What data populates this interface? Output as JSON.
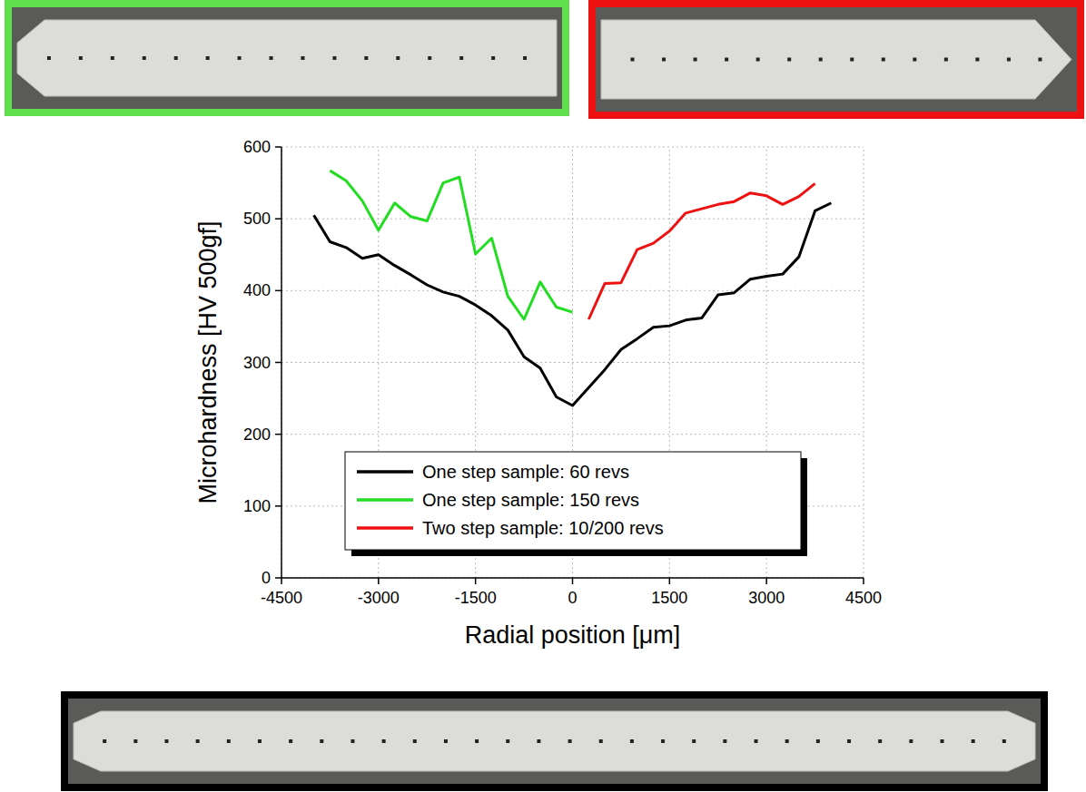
{
  "chart_data": {
    "type": "line",
    "x_label": "Radial position [μm]",
    "y_label": "Microhardness [HV 500gf]",
    "xlim": [
      -4500,
      4500
    ],
    "xticks": [
      -4500,
      -3000,
      -1500,
      0,
      1500,
      3000,
      4500
    ],
    "ylim": [
      0,
      600
    ],
    "yticks": [
      0,
      100,
      200,
      300,
      400,
      500,
      600
    ],
    "grid": true,
    "legend": "bottom",
    "series": [
      {
        "name": "One step sample: 60 revs",
        "color": "#000000",
        "x": [
          -4000,
          -3750,
          -3500,
          -3250,
          -3000,
          -2750,
          -2500,
          -2250,
          -2000,
          -1750,
          -1500,
          -1250,
          -1000,
          -750,
          -500,
          -250,
          0,
          250,
          500,
          750,
          1000,
          1250,
          1500,
          1750,
          2000,
          2250,
          2500,
          2750,
          3000,
          3250,
          3500,
          3750,
          4000
        ],
        "values": [
          505,
          468,
          460,
          445,
          450,
          435,
          422,
          408,
          398,
          392,
          380,
          365,
          345,
          308,
          292,
          252,
          240,
          265,
          290,
          318,
          333,
          349,
          351,
          359,
          362,
          394,
          397,
          416,
          420,
          423,
          447,
          511,
          522
        ]
      },
      {
        "name": "One step sample: 150 revs",
        "color": "#22dd22",
        "x": [
          -3750,
          -3500,
          -3250,
          -3000,
          -2750,
          -2500,
          -2250,
          -2000,
          -1750,
          -1500,
          -1250,
          -1000,
          -750,
          -500,
          -250,
          0
        ],
        "values": [
          567,
          553,
          525,
          484,
          522,
          503,
          497,
          550,
          558,
          451,
          473,
          392,
          360,
          412,
          377,
          370
        ]
      },
      {
        "name": "Two step sample: 10/200 revs",
        "color": "#ee1111",
        "x": [
          250,
          500,
          750,
          1000,
          1250,
          1500,
          1750,
          2000,
          2250,
          2500,
          2750,
          3000,
          3250,
          3500,
          3750
        ],
        "values": [
          360,
          410,
          411,
          457,
          466,
          483,
          508,
          514,
          520,
          524,
          536,
          532,
          520,
          531,
          549
        ]
      }
    ]
  }
}
